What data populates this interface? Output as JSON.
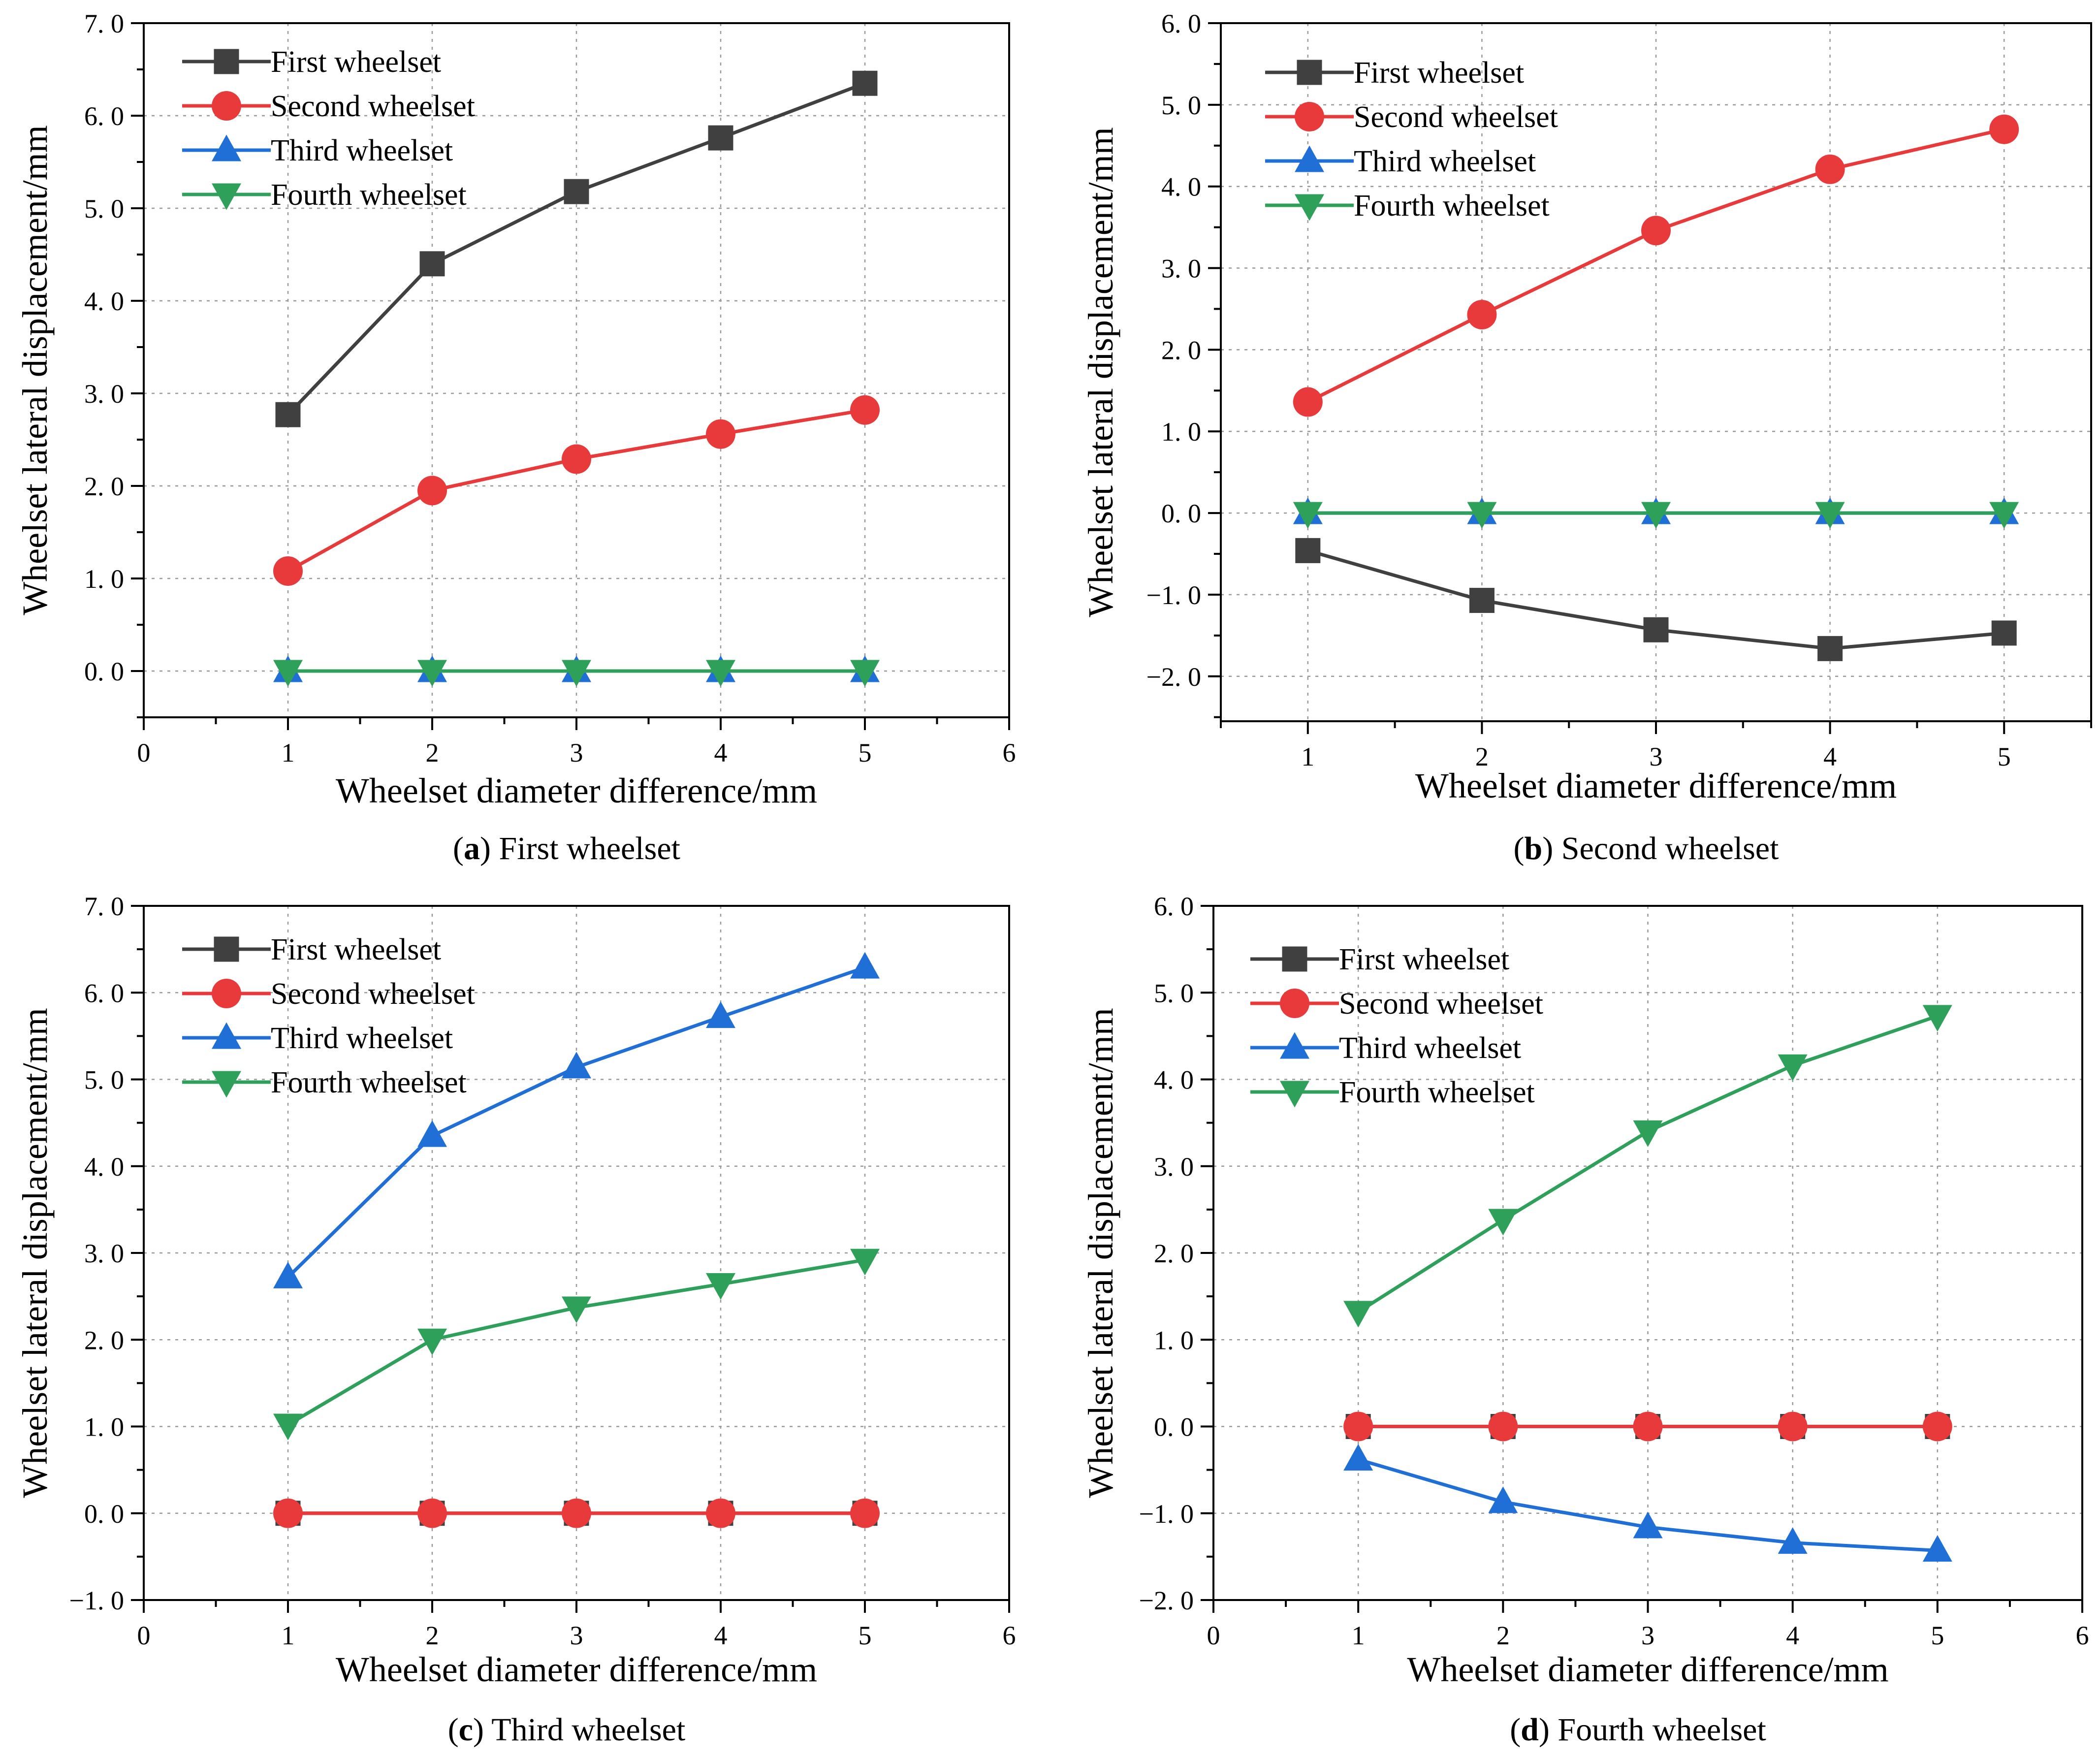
{
  "colors": {
    "First wheelset": "#404040",
    "Second wheelset": "#e8393b",
    "Third wheelset": "#1f6fd6",
    "Fourth wheelset": "#2ea05a"
  },
  "chart_data": [
    {
      "type": "line",
      "panel": "a",
      "caption_letter": "a",
      "caption_text": "First wheelset",
      "xlabel": "Wheelset diameter difference/mm",
      "ylabel": "Wheelset lateral displacement/mm",
      "xlim": [
        0,
        6
      ],
      "ylim": [
        -0.5,
        7.0
      ],
      "xticks": [
        0,
        1,
        2,
        3,
        4,
        5,
        6
      ],
      "xtick_labels": [
        "0",
        "1",
        "2",
        "3",
        "4",
        "5",
        "6"
      ],
      "yticks": [
        0.0,
        1.0,
        2.0,
        3.0,
        4.0,
        5.0,
        6.0,
        7.0
      ],
      "ytick_labels": [
        "0. 0",
        "1. 0",
        "2. 0",
        "3. 0",
        "4. 0",
        "5. 0",
        "6. 0",
        "7. 0"
      ],
      "xgrid": [
        1,
        2,
        3,
        4,
        5
      ],
      "ygrid": [
        0,
        1,
        2,
        3,
        4,
        5,
        6
      ],
      "legend": "top-left",
      "x": [
        1,
        2,
        3,
        4,
        5
      ],
      "series": [
        {
          "name": "First wheelset",
          "marker": "square",
          "values": [
            2.77,
            4.4,
            5.18,
            5.76,
            6.35
          ]
        },
        {
          "name": "Second wheelset",
          "marker": "circle",
          "values": [
            1.08,
            1.95,
            2.29,
            2.56,
            2.82
          ]
        },
        {
          "name": "Third wheelset",
          "marker": "triangle-up",
          "values": [
            0.0,
            0.0,
            0.0,
            0.0,
            0.0
          ]
        },
        {
          "name": "Fourth wheelset",
          "marker": "triangle-down",
          "values": [
            0.0,
            0.0,
            0.0,
            0.0,
            0.0
          ]
        }
      ]
    },
    {
      "type": "line",
      "panel": "b",
      "caption_letter": "b",
      "caption_text": "Second wheelset",
      "xlabel": "Wheelset diameter difference/mm",
      "ylabel": "Wheelset lateral displacement/mm",
      "xlim": [
        0.5,
        5.5
      ],
      "ylim": [
        -2.55,
        6.0
      ],
      "xticks": [
        1,
        2,
        3,
        4,
        5
      ],
      "xtick_labels": [
        "1",
        "2",
        "3",
        "4",
        "5"
      ],
      "yticks": [
        -2.0,
        -1.0,
        0.0,
        1.0,
        2.0,
        3.0,
        4.0,
        5.0,
        6.0
      ],
      "ytick_labels": [
        "−2. 0",
        "−1. 0",
        "0. 0",
        "1. 0",
        "2. 0",
        "3. 0",
        "4. 0",
        "5. 0",
        "6. 0"
      ],
      "xgrid": [
        1,
        2,
        3,
        4,
        5
      ],
      "ygrid": [
        -2,
        -1,
        0,
        1,
        2,
        3,
        4,
        5
      ],
      "legend": "top-left",
      "x": [
        1,
        2,
        3,
        4,
        5
      ],
      "series": [
        {
          "name": "First wheelset",
          "marker": "square",
          "values": [
            -0.46,
            -1.07,
            -1.43,
            -1.66,
            -1.47
          ]
        },
        {
          "name": "Second wheelset",
          "marker": "circle",
          "values": [
            1.36,
            2.43,
            3.46,
            4.21,
            4.7
          ]
        },
        {
          "name": "Third wheelset",
          "marker": "triangle-up",
          "values": [
            0.0,
            0.0,
            0.0,
            0.0,
            0.0
          ]
        },
        {
          "name": "Fourth wheelset",
          "marker": "triangle-down",
          "values": [
            0.0,
            0.0,
            0.0,
            0.0,
            0.0
          ]
        }
      ]
    },
    {
      "type": "line",
      "panel": "c",
      "caption_letter": "c",
      "caption_text": "Third wheelset",
      "xlabel": "Wheelset diameter difference/mm",
      "ylabel": "Wheelset lateral displacement/mm",
      "xlim": [
        0,
        6
      ],
      "ylim": [
        -1.0,
        7.0
      ],
      "xticks": [
        0,
        1,
        2,
        3,
        4,
        5,
        6
      ],
      "xtick_labels": [
        "0",
        "1",
        "2",
        "3",
        "4",
        "5",
        "6"
      ],
      "yticks": [
        -1.0,
        0.0,
        1.0,
        2.0,
        3.0,
        4.0,
        5.0,
        6.0,
        7.0
      ],
      "ytick_labels": [
        "−1. 0",
        "0. 0",
        "1. 0",
        "2. 0",
        "3. 0",
        "4. 0",
        "5. 0",
        "6. 0",
        "7. 0"
      ],
      "xgrid": [
        1,
        2,
        3,
        4,
        5
      ],
      "ygrid": [
        0,
        1,
        2,
        3,
        4,
        5,
        6
      ],
      "legend": "top-left",
      "x": [
        1,
        2,
        3,
        4,
        5
      ],
      "series": [
        {
          "name": "First wheelset",
          "marker": "square",
          "values": [
            0.0,
            0.0,
            0.0,
            0.0,
            0.0
          ]
        },
        {
          "name": "Second wheelset",
          "marker": "circle",
          "values": [
            0.0,
            0.0,
            0.0,
            0.0,
            0.0
          ]
        },
        {
          "name": "Third wheelset",
          "marker": "triangle-up",
          "values": [
            2.72,
            4.35,
            5.14,
            5.72,
            6.29
          ]
        },
        {
          "name": "Fourth wheelset",
          "marker": "triangle-down",
          "values": [
            1.02,
            2.0,
            2.37,
            2.64,
            2.92
          ]
        }
      ]
    },
    {
      "type": "line",
      "panel": "d",
      "caption_letter": "d",
      "caption_text": "Fourth wheelset",
      "xlabel": "Wheelset diameter difference/mm",
      "ylabel": "Wheelset lateral displacement/mm",
      "xlim": [
        0,
        6
      ],
      "ylim": [
        -2.0,
        6.0
      ],
      "xticks": [
        0,
        1,
        2,
        3,
        4,
        5,
        6
      ],
      "xtick_labels": [
        "0",
        "1",
        "2",
        "3",
        "4",
        "5",
        "6"
      ],
      "yticks": [
        -2.0,
        -1.0,
        0.0,
        1.0,
        2.0,
        3.0,
        4.0,
        5.0,
        6.0
      ],
      "ytick_labels": [
        "−2. 0",
        "−1. 0",
        "0. 0",
        "1. 0",
        "2. 0",
        "3. 0",
        "4. 0",
        "5. 0",
        "6. 0"
      ],
      "xgrid": [
        1,
        2,
        3,
        4,
        5
      ],
      "ygrid": [
        -1,
        0,
        1,
        2,
        3,
        4,
        5
      ],
      "legend": "top-left",
      "x": [
        1,
        2,
        3,
        4,
        5
      ],
      "series": [
        {
          "name": "First wheelset",
          "marker": "square",
          "values": [
            0.0,
            0.0,
            0.0,
            0.0,
            0.0
          ]
        },
        {
          "name": "Second wheelset",
          "marker": "circle",
          "values": [
            0.0,
            0.0,
            0.0,
            0.0,
            0.0
          ]
        },
        {
          "name": "Third wheelset",
          "marker": "triangle-up",
          "values": [
            -0.38,
            -0.87,
            -1.16,
            -1.34,
            -1.43
          ]
        },
        {
          "name": "Fourth wheelset",
          "marker": "triangle-down",
          "values": [
            1.32,
            2.38,
            3.4,
            4.16,
            4.73
          ]
        }
      ]
    }
  ]
}
